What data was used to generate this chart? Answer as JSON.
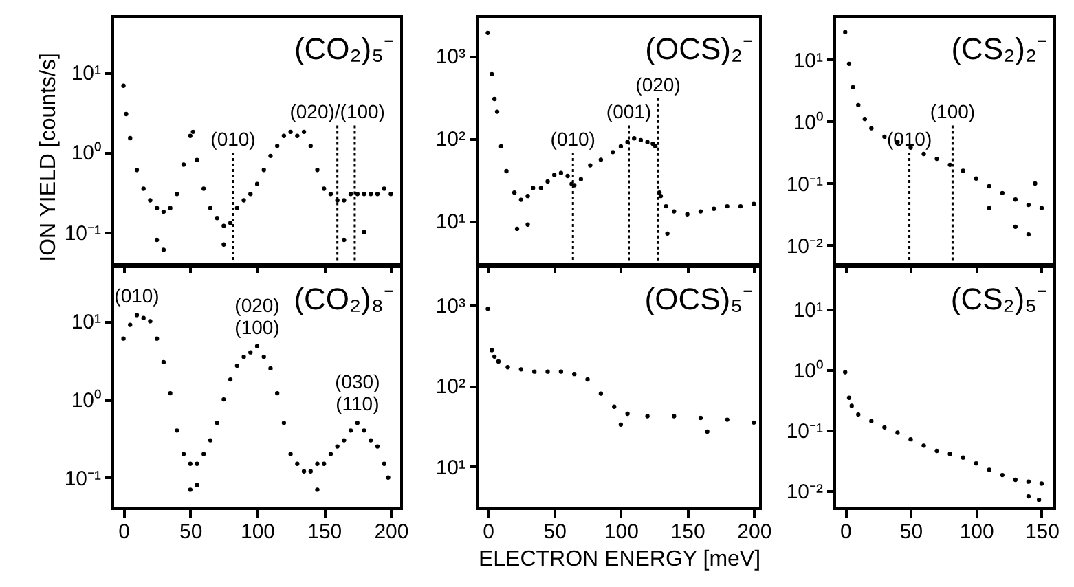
{
  "chart_data": [
    {
      "type": "scatter",
      "title": "(CO₂)₅⁻",
      "ylabel": "ION YIELD [counts/s]",
      "log": "y",
      "marker": "circle",
      "color": "#000000",
      "tick_labels": "y",
      "xlim": [
        -8,
        208
      ],
      "xticks": [
        0,
        50,
        100,
        150,
        200
      ],
      "ylim": [
        0.04,
        50
      ],
      "yticks": [
        {
          "value": 0.1,
          "label": "10⁻¹"
        },
        {
          "value": 1,
          "label": "10⁰"
        },
        {
          "value": 10,
          "label": "10¹"
        }
      ],
      "x": [
        0,
        2,
        5,
        10,
        15,
        20,
        25,
        25,
        30,
        30,
        35,
        40,
        45,
        50,
        52,
        55,
        60,
        65,
        70,
        75,
        75,
        80,
        85,
        90,
        95,
        100,
        105,
        110,
        115,
        120,
        125,
        130,
        135,
        140,
        145,
        150,
        155,
        160,
        165,
        165,
        170,
        175,
        180,
        180,
        185,
        190,
        195,
        200
      ],
      "values": [
        6.8,
        3,
        1.5,
        0.6,
        0.35,
        0.25,
        0.2,
        0.08,
        0.18,
        0.06,
        0.2,
        0.3,
        0.7,
        1.6,
        1.8,
        0.8,
        0.35,
        0.2,
        0.15,
        0.12,
        0.07,
        0.13,
        0.2,
        0.25,
        0.3,
        0.4,
        0.6,
        0.9,
        1.2,
        1.6,
        1.8,
        1.6,
        1.8,
        1.2,
        0.6,
        0.35,
        0.3,
        0.25,
        0.25,
        0.08,
        0.3,
        0.3,
        0.3,
        0.1,
        0.3,
        0.3,
        0.35,
        0.3
      ],
      "ref_lines": [
        {
          "axis": "x",
          "value": 82,
          "line_style": "dotted"
        },
        {
          "axis": "x",
          "value": 160,
          "line_style": "dotted"
        },
        {
          "axis": "x",
          "value": 173,
          "line_style": "dotted"
        }
      ],
      "annotations": [
        "(010)",
        "(020)/(100)"
      ]
    },
    {
      "type": "scatter",
      "title": "(OCS)₂⁻",
      "log": "y",
      "marker": "circle",
      "color": "#000000",
      "tick_labels": "y",
      "xlim": [
        -8,
        205
      ],
      "xticks": [
        0,
        50,
        100,
        150,
        200
      ],
      "ylim": [
        3,
        3000
      ],
      "yticks": [
        {
          "value": 10,
          "label": "10¹"
        },
        {
          "value": 100,
          "label": "10²"
        },
        {
          "value": 1000,
          "label": "10³"
        }
      ],
      "x": [
        0,
        3,
        5,
        7,
        10,
        14,
        20,
        22,
        25,
        30,
        30,
        34,
        40,
        45,
        50,
        55,
        60,
        63,
        65,
        70,
        77,
        85,
        94,
        100,
        105,
        110,
        115,
        120,
        124,
        126,
        129,
        130,
        134,
        135,
        140,
        150,
        160,
        170,
        180,
        190,
        200
      ],
      "values": [
        1900,
        600,
        300,
        210,
        80,
        40,
        22,
        8,
        18,
        20,
        9,
        25,
        25,
        30,
        36,
        38,
        35,
        28,
        27,
        32,
        47,
        55,
        68,
        80,
        90,
        100,
        95,
        90,
        86,
        80,
        22,
        20,
        15,
        7,
        13,
        12,
        13,
        14,
        15,
        15,
        16
      ],
      "ref_lines": [
        {
          "axis": "x",
          "value": 64,
          "line_style": "dotted"
        },
        {
          "axis": "x",
          "value": 106,
          "line_style": "dotted"
        },
        {
          "axis": "x",
          "value": 128,
          "line_style": "dotted"
        }
      ],
      "annotations": [
        "(010)",
        "(001)",
        "(020)"
      ]
    },
    {
      "type": "scatter",
      "title": "(CS₂)₂⁻",
      "log": "y",
      "marker": "circle",
      "color": "#000000",
      "tick_labels": "y",
      "xlim": [
        -8,
        160
      ],
      "xticks": [
        0,
        50,
        100,
        150
      ],
      "ylim": [
        0.005,
        50
      ],
      "yticks": [
        {
          "value": 0.01,
          "label": "10⁻²"
        },
        {
          "value": 0.1,
          "label": "10⁻¹"
        },
        {
          "value": 1,
          "label": "10⁰"
        },
        {
          "value": 10,
          "label": "10¹"
        }
      ],
      "x": [
        0,
        3,
        6,
        10,
        15,
        20,
        30,
        40,
        50,
        60,
        70,
        80,
        90,
        100,
        110,
        110,
        120,
        130,
        130,
        140,
        140,
        145,
        150
      ],
      "values": [
        28,
        8.6,
        3.6,
        1.85,
        1.1,
        0.78,
        0.57,
        0.47,
        0.38,
        0.3,
        0.25,
        0.2,
        0.16,
        0.12,
        0.09,
        0.04,
        0.07,
        0.055,
        0.02,
        0.045,
        0.015,
        0.1,
        0.04
      ],
      "ref_lines": [
        {
          "axis": "x",
          "value": 49,
          "line_style": "dotted"
        },
        {
          "axis": "x",
          "value": 82,
          "line_style": "dotted"
        }
      ],
      "annotations": [
        "(010)",
        "(100)"
      ]
    },
    {
      "type": "scatter",
      "title": "(CO₂)₈⁻",
      "log": "y",
      "marker": "circle",
      "color": "#000000",
      "xlim": [
        -8,
        208
      ],
      "xticks": [
        0,
        50,
        100,
        150,
        200
      ],
      "ylim": [
        0.04,
        50
      ],
      "yticks": [
        {
          "value": 0.1,
          "label": "10⁻¹"
        },
        {
          "value": 1,
          "label": "10⁰"
        },
        {
          "value": 10,
          "label": "10¹"
        }
      ],
      "x": [
        0,
        5,
        10,
        15,
        20,
        25,
        30,
        35,
        40,
        45,
        50,
        50,
        55,
        55,
        60,
        65,
        70,
        75,
        80,
        85,
        90,
        95,
        100,
        105,
        110,
        115,
        120,
        125,
        130,
        135,
        140,
        145,
        145,
        150,
        155,
        160,
        165,
        170,
        175,
        180,
        185,
        190,
        195,
        198
      ],
      "values": [
        6,
        9,
        12,
        11,
        10,
        6,
        3,
        1.2,
        0.4,
        0.2,
        0.15,
        0.07,
        0.15,
        0.08,
        0.2,
        0.3,
        0.5,
        1,
        1.8,
        2.7,
        3.5,
        4,
        4.8,
        3.5,
        2.5,
        1.2,
        0.5,
        0.2,
        0.15,
        0.12,
        0.12,
        0.15,
        0.07,
        0.15,
        0.2,
        0.25,
        0.3,
        0.4,
        0.5,
        0.4,
        0.3,
        0.25,
        0.15,
        0.1
      ],
      "annotations": [
        {
          "text": "(010)",
          "x": 10,
          "y": 12
        },
        {
          "text": "(020)",
          "x": 100,
          "y": 4.8
        },
        {
          "text": "(100)",
          "x": 100,
          "y": 4.8
        },
        {
          "text": "(030)",
          "x": 175,
          "y": 0.5
        },
        {
          "text": "(110)",
          "x": 175,
          "y": 0.5
        }
      ]
    },
    {
      "type": "scatter",
      "title": "(OCS)₅⁻",
      "xlabel": "ELECTRON ENERGY [meV]",
      "log": "y",
      "marker": "circle",
      "color": "#000000",
      "xlim": [
        -8,
        205
      ],
      "xticks": [
        0,
        50,
        100,
        150,
        200
      ],
      "ylim": [
        3,
        3000
      ],
      "yticks": [
        {
          "value": 10,
          "label": "10¹"
        },
        {
          "value": 100,
          "label": "10²"
        },
        {
          "value": 1000,
          "label": "10³"
        }
      ],
      "x": [
        0,
        3,
        5,
        8,
        15,
        25,
        35,
        45,
        55,
        65,
        75,
        85,
        95,
        100,
        105,
        120,
        140,
        160,
        165,
        180,
        200
      ],
      "values": [
        900,
        277,
        230,
        200,
        170,
        160,
        150,
        150,
        150,
        140,
        120,
        80,
        55,
        33,
        45,
        42,
        42,
        40,
        27,
        38,
        35
      ]
    },
    {
      "type": "scatter",
      "title": "(CS₂)₅⁻",
      "log": "y",
      "marker": "circle",
      "color": "#000000",
      "xlim": [
        -8,
        160
      ],
      "xticks": [
        0,
        50,
        100,
        150
      ],
      "ylim": [
        0.005,
        50
      ],
      "yticks": [
        {
          "value": 0.01,
          "label": "10⁻²"
        },
        {
          "value": 0.1,
          "label": "10⁻¹"
        },
        {
          "value": 1,
          "label": "10⁰"
        },
        {
          "value": 10,
          "label": "10¹"
        }
      ],
      "x": [
        0,
        3,
        5,
        10,
        20,
        30,
        40,
        50,
        60,
        70,
        80,
        90,
        100,
        110,
        120,
        130,
        140,
        140,
        148,
        150
      ],
      "values": [
        0.9,
        0.34,
        0.25,
        0.18,
        0.14,
        0.11,
        0.09,
        0.07,
        0.055,
        0.045,
        0.04,
        0.035,
        0.028,
        0.022,
        0.018,
        0.015,
        0.014,
        0.008,
        0.007,
        0.013
      ]
    }
  ]
}
